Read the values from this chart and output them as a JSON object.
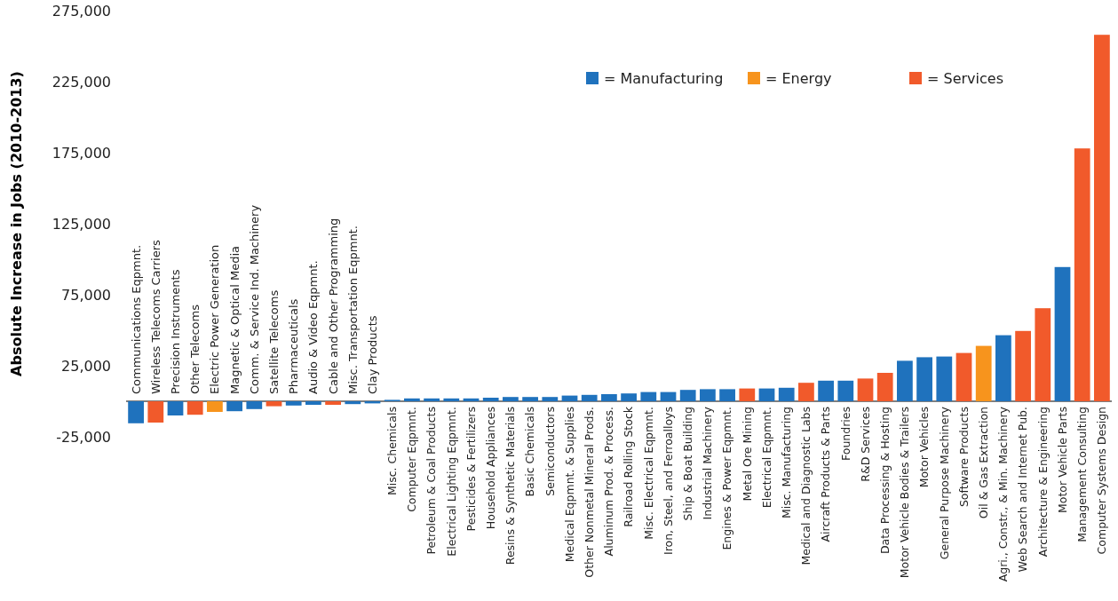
{
  "chart_data": {
    "type": "bar",
    "ylabel": "Absolute Increase in Jobs (2010-2013)",
    "categories": [
      "Communications Eqpmnt.",
      "Wireless Telecoms Carriers",
      "Precision Instruments",
      "Other Telecoms",
      "Electric Power Generation",
      "Magnetic & Optical Media",
      "Comm. & Service Ind. Machinery",
      "Satellite Telecoms",
      "Pharmaceuticals",
      "Audio & Video Eqpmnt.",
      "Cable and Other Programming",
      "Misc. Transportation Eqpmnt.",
      "Clay Products",
      "Misc. Chemicals",
      "Computer Eqpmnt.",
      "Petroleum & Coal Products",
      "Electrical Lighting Eqpmnt.",
      "Pesticides & Fertilizers",
      "Household Appliances",
      "Resins & Synthetic Materials",
      "Basic Chemicals",
      "Semiconductors",
      "Medical Eqpmnt. & Supplies",
      "Other Nonmetal Mineral Prods.",
      "Aluminum Prod. & Process.",
      "Railroad Rolling Stock",
      "Misc. Electrical Eqpmnt.",
      "Iron, Steel, and Ferroalloys",
      "Ship & Boat Building",
      "Industrial Machinery",
      "Engines & Power Eqpmnt.",
      "Metal Ore Mining",
      "Electrical Eqpmnt.",
      "Misc. Manufacturing",
      "Medical and Diagnostic Labs",
      "Aircraft Products & Parts",
      "Foundries",
      "R&D Services",
      "Data Processing & Hosting",
      "Motor Vehicle Bodies & Trailers",
      "Motor Vehicles",
      "General Purpose Machinery",
      "Software Products",
      "Oil & Gas Extraction",
      "Agri., Constr., & Min. Machinery",
      "Web Search and Internet Pub.",
      "Architecture & Engineering",
      "Motor Vehicle Parts",
      "Management Consulting",
      "Computer Systems Design"
    ],
    "series": [
      {
        "name": "= Manufacturing",
        "color": "#1f72bd",
        "values": [
          -15500,
          null,
          -10000,
          null,
          null,
          -7000,
          -5500,
          null,
          -3000,
          -2500,
          null,
          -2000,
          -1500,
          1000,
          2000,
          2000,
          2000,
          2000,
          2500,
          3000,
          3000,
          3000,
          4000,
          4500,
          5000,
          5500,
          6500,
          6500,
          8000,
          8500,
          8500,
          null,
          9000,
          9500,
          null,
          14500,
          14500,
          null,
          null,
          28500,
          31000,
          31500,
          null,
          null,
          46500,
          null,
          null,
          94500,
          null,
          null
        ]
      },
      {
        "name": "= Energy",
        "color": "#f7941d",
        "values": [
          null,
          null,
          null,
          null,
          -7500,
          null,
          null,
          null,
          null,
          null,
          null,
          null,
          null,
          null,
          null,
          null,
          null,
          null,
          null,
          null,
          null,
          null,
          null,
          null,
          null,
          null,
          null,
          null,
          null,
          null,
          null,
          null,
          null,
          null,
          null,
          null,
          null,
          null,
          null,
          null,
          null,
          null,
          null,
          39000,
          null,
          null,
          null,
          null,
          null,
          null
        ]
      },
      {
        "name": "= Services",
        "color": "#f15a2b",
        "values": [
          null,
          -15000,
          null,
          -9500,
          null,
          null,
          null,
          -3500,
          null,
          null,
          -2500,
          null,
          null,
          null,
          null,
          null,
          null,
          null,
          null,
          null,
          null,
          null,
          null,
          null,
          null,
          null,
          null,
          null,
          null,
          null,
          null,
          9000,
          null,
          null,
          13000,
          null,
          null,
          16000,
          20000,
          null,
          null,
          null,
          34000,
          null,
          null,
          49500,
          65500,
          null,
          178000,
          258000
        ]
      }
    ],
    "ylim": [
      -25000,
      275000
    ],
    "yticks": [
      {
        "value": 275000,
        "label": "275,000"
      },
      {
        "value": 225000,
        "label": "225,000"
      },
      {
        "value": 175000,
        "label": "175,000"
      },
      {
        "value": 125000,
        "label": "125,000"
      },
      {
        "value": 75000,
        "label": "75,000"
      },
      {
        "value": 25000,
        "label": "25,000"
      },
      {
        "value": -25000,
        "label": "-25,000"
      }
    ],
    "legend": "top"
  }
}
